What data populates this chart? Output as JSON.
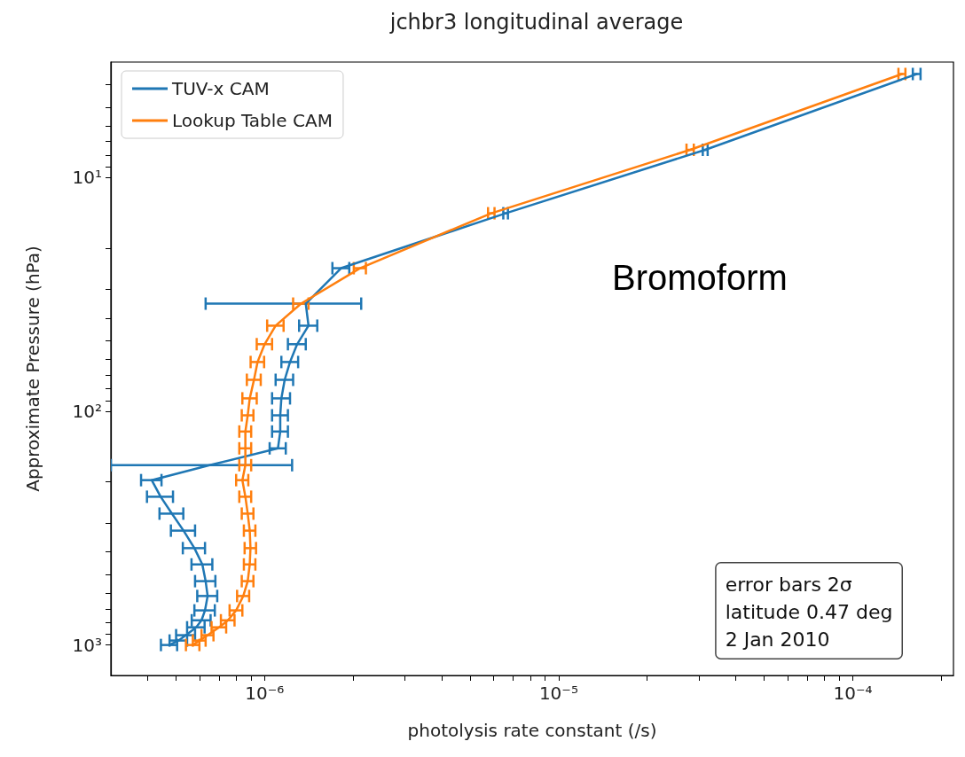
{
  "chart_data": {
    "type": "line",
    "title": "jchbr3 longitudinal average",
    "xlabel": "photolysis rate constant (/s)",
    "ylabel": "Approximate Pressure (hPa)",
    "log": "xy",
    "legend": "top left",
    "marker": "none",
    "line_style": "solid",
    "xlim": [
      3e-07,
      0.00022
    ],
    "xticks": [
      {
        "value": 4e-07,
        "label": null
      },
      {
        "value": 5e-07,
        "label": null
      },
      {
        "value": 6e-07,
        "label": null
      },
      {
        "value": 7e-07,
        "label": null
      },
      {
        "value": 8e-07,
        "label": null
      },
      {
        "value": 9e-07,
        "label": null
      },
      {
        "value": 1e-06,
        "label": "10⁻⁶"
      },
      {
        "value": 2e-06,
        "label": null
      },
      {
        "value": 3e-06,
        "label": null
      },
      {
        "value": 4e-06,
        "label": null
      },
      {
        "value": 5e-06,
        "label": null
      },
      {
        "value": 6e-06,
        "label": null
      },
      {
        "value": 7e-06,
        "label": null
      },
      {
        "value": 8e-06,
        "label": null
      },
      {
        "value": 9e-06,
        "label": null
      },
      {
        "value": 1e-05,
        "label": "10⁻⁵"
      },
      {
        "value": 2e-05,
        "label": null
      },
      {
        "value": 3e-05,
        "label": null
      },
      {
        "value": 4e-05,
        "label": null
      },
      {
        "value": 5e-05,
        "label": null
      },
      {
        "value": 6e-05,
        "label": null
      },
      {
        "value": 7e-05,
        "label": null
      },
      {
        "value": 8e-05,
        "label": null
      },
      {
        "value": 9e-05,
        "label": null
      },
      {
        "value": 0.0001,
        "label": "10⁻⁴"
      },
      {
        "value": 0.0002,
        "label": null
      }
    ],
    "ylim": [
      1350,
      3.2
    ],
    "yticks": [
      {
        "value": 4,
        "label": null
      },
      {
        "value": 5,
        "label": null
      },
      {
        "value": 6,
        "label": null
      },
      {
        "value": 7,
        "label": null
      },
      {
        "value": 8,
        "label": null
      },
      {
        "value": 9,
        "label": null
      },
      {
        "value": 10,
        "label": "10¹"
      },
      {
        "value": 20,
        "label": null
      },
      {
        "value": 30,
        "label": null
      },
      {
        "value": 40,
        "label": null
      },
      {
        "value": 50,
        "label": null
      },
      {
        "value": 60,
        "label": null
      },
      {
        "value": 70,
        "label": null
      },
      {
        "value": 80,
        "label": null
      },
      {
        "value": 90,
        "label": null
      },
      {
        "value": 100,
        "label": "10²"
      },
      {
        "value": 200,
        "label": null
      },
      {
        "value": 300,
        "label": null
      },
      {
        "value": 400,
        "label": null
      },
      {
        "value": 500,
        "label": null
      },
      {
        "value": 600,
        "label": null
      },
      {
        "value": 700,
        "label": null
      },
      {
        "value": 800,
        "label": null
      },
      {
        "value": 900,
        "label": null
      },
      {
        "value": 1000,
        "label": "10³"
      }
    ],
    "series": [
      {
        "name": "TUV-x CAM",
        "color": "#1f77b4",
        "x": [
          0.000165,
          3.15e-05,
          6.6e-06,
          1.82e-06,
          1.38e-06,
          1.41e-06,
          1.29e-06,
          1.22e-06,
          1.17e-06,
          1.14e-06,
          1.13e-06,
          1.13e-06,
          1.11e-06,
          6.5e-07,
          4.13e-07,
          4.43e-07,
          4.84e-07,
          5.3e-07,
          5.77e-07,
          6.14e-07,
          6.3e-07,
          6.4e-07,
          6.27e-07,
          6.1e-07,
          5.85e-07,
          5.4e-07,
          5.1e-07,
          4.74e-07
        ],
        "values": [
          3.6,
          7.6,
          14.2,
          24.4,
          34.6,
          43,
          51.6,
          61.5,
          73.3,
          88,
          104,
          122,
          144,
          170,
          197,
          232,
          274,
          324,
          385,
          452,
          533,
          617,
          711,
          784,
          840,
          908,
          957,
          1000
        ],
        "xerrors": [
          5e-06,
          6e-07,
          1.2e-07,
          1.2e-07,
          7.5e-07,
          1e-07,
          9e-08,
          8e-08,
          8e-08,
          8e-08,
          7e-08,
          7e-08,
          7e-08,
          [
            3e-07,
            1.24e-06
          ],
          3.3e-08,
          4.5e-08,
          4.5e-08,
          5e-08,
          5e-08,
          5e-08,
          5e-08,
          5e-08,
          5e-08,
          4.5e-08,
          4e-08,
          4e-08,
          3.5e-08,
          3e-08
        ]
      },
      {
        "name": "Lookup Table CAM",
        "color": "#ff7f0e",
        "x": [
          0.000147,
          2.8e-05,
          5.9e-06,
          2.11e-06,
          1.33e-06,
          1.09e-06,
          1e-06,
          9.46e-07,
          9.2e-07,
          8.9e-07,
          8.76e-07,
          8.6e-07,
          8.6e-07,
          8.6e-07,
          8.4e-07,
          8.6e-07,
          8.76e-07,
          8.9e-07,
          8.95e-07,
          8.9e-07,
          8.76e-07,
          8.46e-07,
          8e-07,
          7.5e-07,
          7e-07,
          6.4e-07,
          6e-07,
          5.7e-07
        ],
        "values": [
          3.6,
          7.6,
          14.2,
          24.4,
          34.6,
          43,
          51.6,
          61.5,
          73.3,
          88,
          104,
          122,
          144,
          170,
          197,
          232,
          274,
          324,
          385,
          452,
          533,
          617,
          711,
          784,
          840,
          908,
          957,
          1000
        ],
        "xerrors": [
          4e-06,
          8e-07,
          1.5e-07,
          1e-07,
          8e-08,
          7e-08,
          6e-08,
          5e-08,
          5e-08,
          5e-08,
          4e-08,
          4e-08,
          4e-08,
          4e-08,
          4e-08,
          4e-08,
          4e-08,
          4e-08,
          4e-08,
          4e-08,
          4e-08,
          4e-08,
          4e-08,
          4e-08,
          4e-08,
          3e-08,
          3e-08,
          3e-08
        ]
      }
    ],
    "annotations": [
      "Bromoform",
      "error bars 2σ\nlatitude 0.47 deg\n2 Jan 2010"
    ]
  }
}
